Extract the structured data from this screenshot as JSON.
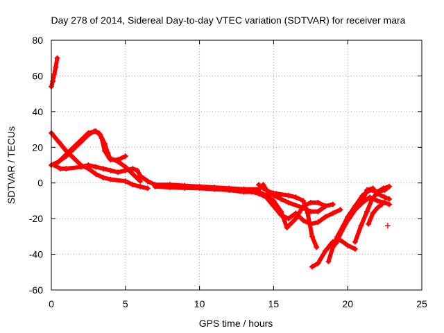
{
  "chart_data": {
    "type": "scatter",
    "title": "Day 278 of 2014, Sidereal Day-to-day VTEC variation (SDTVAR) for receiver mara",
    "xlabel": "GPS time / hours",
    "ylabel": "SDTVAR / TECUs",
    "xlim": [
      0,
      25
    ],
    "ylim": [
      -60,
      80
    ],
    "xticks": [
      0,
      5,
      10,
      15,
      20,
      25
    ],
    "yticks": [
      -60,
      -40,
      -20,
      0,
      20,
      40,
      60,
      80
    ],
    "grid": true,
    "marker": "+",
    "color": "#ff0000",
    "series": [
      {
        "name": "trace-1",
        "points": [
          [
            0.0,
            54
          ],
          [
            0.1,
            57
          ],
          [
            0.2,
            61
          ],
          [
            0.3,
            65
          ],
          [
            0.4,
            70
          ]
        ]
      },
      {
        "name": "trace-2",
        "points": [
          [
            0.0,
            28
          ],
          [
            0.5,
            23
          ],
          [
            1.0,
            18
          ],
          [
            1.5,
            14
          ],
          [
            2.0,
            10
          ],
          [
            2.5,
            8
          ],
          [
            3.0,
            5
          ],
          [
            3.5,
            3
          ],
          [
            4.0,
            2
          ],
          [
            5.0,
            1
          ],
          [
            5.5,
            -1
          ],
          [
            6.0,
            -2
          ],
          [
            6.5,
            -3
          ]
        ]
      },
      {
        "name": "trace-3",
        "points": [
          [
            0.0,
            10
          ],
          [
            0.5,
            12
          ],
          [
            1.0,
            16
          ],
          [
            1.5,
            20
          ],
          [
            2.0,
            24
          ],
          [
            2.5,
            28
          ],
          [
            3.0,
            29
          ],
          [
            3.3,
            27
          ],
          [
            3.6,
            22
          ],
          [
            3.8,
            17
          ],
          [
            4.0,
            13
          ],
          [
            4.5,
            13
          ],
          [
            5.0,
            15
          ]
        ]
      },
      {
        "name": "trace-4",
        "points": [
          [
            0.2,
            10
          ],
          [
            0.6,
            8
          ],
          [
            1.0,
            8
          ],
          [
            2.0,
            9
          ],
          [
            2.5,
            10
          ],
          [
            3.0,
            9
          ],
          [
            3.5,
            8
          ],
          [
            4.0,
            7
          ],
          [
            4.5,
            6
          ],
          [
            5.0,
            7
          ],
          [
            5.5,
            8
          ],
          [
            5.8,
            7
          ],
          [
            6.0,
            4
          ],
          [
            6.5,
            1
          ],
          [
            7.0,
            -1
          ]
        ]
      },
      {
        "name": "trace-5",
        "points": [
          [
            0.5,
            12
          ],
          [
            1.0,
            15
          ],
          [
            1.5,
            19
          ],
          [
            2.0,
            23
          ],
          [
            2.5,
            27
          ],
          [
            2.9,
            29
          ],
          [
            3.2,
            28
          ],
          [
            3.4,
            25
          ],
          [
            3.6,
            18
          ],
          [
            3.9,
            14
          ],
          [
            4.5,
            12
          ],
          [
            5.0,
            9
          ],
          [
            5.5,
            5
          ],
          [
            6.0,
            1
          ]
        ]
      },
      {
        "name": "trace-6",
        "points": [
          [
            7.0,
            -1
          ],
          [
            8.0,
            -1
          ],
          [
            9.0,
            -1.5
          ],
          [
            10.0,
            -2
          ],
          [
            11.0,
            -2.5
          ],
          [
            12.0,
            -3
          ],
          [
            13.0,
            -3.5
          ],
          [
            14.0,
            -3.5
          ],
          [
            14.3,
            -1
          ],
          [
            14.6,
            -5
          ],
          [
            15.0,
            -7
          ],
          [
            15.5,
            -9
          ],
          [
            16.0,
            -11
          ],
          [
            17.0,
            -14
          ],
          [
            17.5,
            -16
          ],
          [
            18.0,
            -16
          ],
          [
            18.5,
            -13
          ]
        ]
      },
      {
        "name": "trace-7",
        "points": [
          [
            7.0,
            -2
          ],
          [
            8.0,
            -2.5
          ],
          [
            9.0,
            -2.8
          ],
          [
            10.0,
            -3
          ],
          [
            11.0,
            -3.5
          ],
          [
            12.0,
            -4
          ],
          [
            13.0,
            -5
          ],
          [
            14.0,
            -5
          ],
          [
            14.5,
            -7
          ],
          [
            15.0,
            -10
          ],
          [
            15.5,
            -16
          ],
          [
            15.9,
            -25
          ],
          [
            16.5,
            -20
          ],
          [
            17.0,
            -13
          ],
          [
            17.5,
            -11
          ],
          [
            18.0,
            -11
          ],
          [
            18.5,
            -13
          ],
          [
            19.0,
            -12
          ]
        ]
      },
      {
        "name": "trace-8",
        "points": [
          [
            12.0,
            -4
          ],
          [
            13.0,
            -5
          ],
          [
            13.5,
            -5
          ],
          [
            14.0,
            -6
          ],
          [
            14.5,
            -8
          ],
          [
            15.0,
            -13
          ],
          [
            15.5,
            -18
          ],
          [
            16.0,
            -20
          ],
          [
            16.5,
            -17
          ],
          [
            17.0,
            -21
          ],
          [
            17.5,
            -23
          ],
          [
            18.0,
            -22
          ],
          [
            18.5,
            -19
          ],
          [
            19.0,
            -17
          ],
          [
            19.5,
            -15
          ]
        ]
      },
      {
        "name": "trace-9",
        "points": [
          [
            14.0,
            -1
          ],
          [
            14.3,
            -3
          ],
          [
            14.7,
            -5
          ],
          [
            15.2,
            -6
          ],
          [
            16.0,
            -7
          ],
          [
            16.5,
            -8
          ],
          [
            17.0,
            -10
          ],
          [
            17.3,
            -17
          ],
          [
            17.6,
            -30
          ],
          [
            17.9,
            -36
          ]
        ]
      },
      {
        "name": "trace-10",
        "points": [
          [
            17.6,
            -47
          ],
          [
            18.0,
            -45
          ],
          [
            18.5,
            -38
          ],
          [
            19.0,
            -33
          ],
          [
            19.5,
            -32
          ],
          [
            20.0,
            -35
          ],
          [
            20.5,
            -37
          ]
        ]
      },
      {
        "name": "trace-11",
        "points": [
          [
            18.7,
            -44
          ],
          [
            19.0,
            -36
          ],
          [
            19.3,
            -30
          ],
          [
            19.7,
            -24
          ],
          [
            20.0,
            -19
          ],
          [
            20.5,
            -13
          ],
          [
            21.0,
            -7
          ],
          [
            21.5,
            -4
          ],
          [
            22.0,
            -5
          ],
          [
            22.5,
            -4
          ],
          [
            22.8,
            -2
          ]
        ]
      },
      {
        "name": "trace-12",
        "points": [
          [
            19.2,
            -34
          ],
          [
            19.6,
            -27
          ],
          [
            20.0,
            -21
          ],
          [
            20.5,
            -15
          ],
          [
            21.0,
            -10
          ],
          [
            21.3,
            -4
          ],
          [
            21.7,
            -3
          ],
          [
            22.0,
            -6
          ],
          [
            22.5,
            -8
          ],
          [
            22.8,
            -9
          ]
        ]
      },
      {
        "name": "trace-13",
        "points": [
          [
            20.1,
            -20
          ],
          [
            20.5,
            -15
          ],
          [
            21.0,
            -11
          ],
          [
            21.5,
            -8
          ],
          [
            22.0,
            -10
          ],
          [
            22.5,
            -11
          ],
          [
            22.8,
            -12
          ]
        ]
      },
      {
        "name": "trace-14",
        "points": [
          [
            20.5,
            -33
          ],
          [
            20.9,
            -24
          ],
          [
            21.3,
            -16
          ],
          [
            21.6,
            -10
          ],
          [
            22.0,
            -5
          ],
          [
            22.4,
            -3
          ],
          [
            22.8,
            -2
          ]
        ]
      },
      {
        "name": "trace-15",
        "points": [
          [
            21.4,
            -23
          ],
          [
            21.7,
            -17
          ],
          [
            22.0,
            -14
          ],
          [
            22.3,
            -12
          ]
        ]
      },
      {
        "name": "trace-16",
        "points": [
          [
            22.7,
            -24
          ]
        ]
      }
    ]
  }
}
